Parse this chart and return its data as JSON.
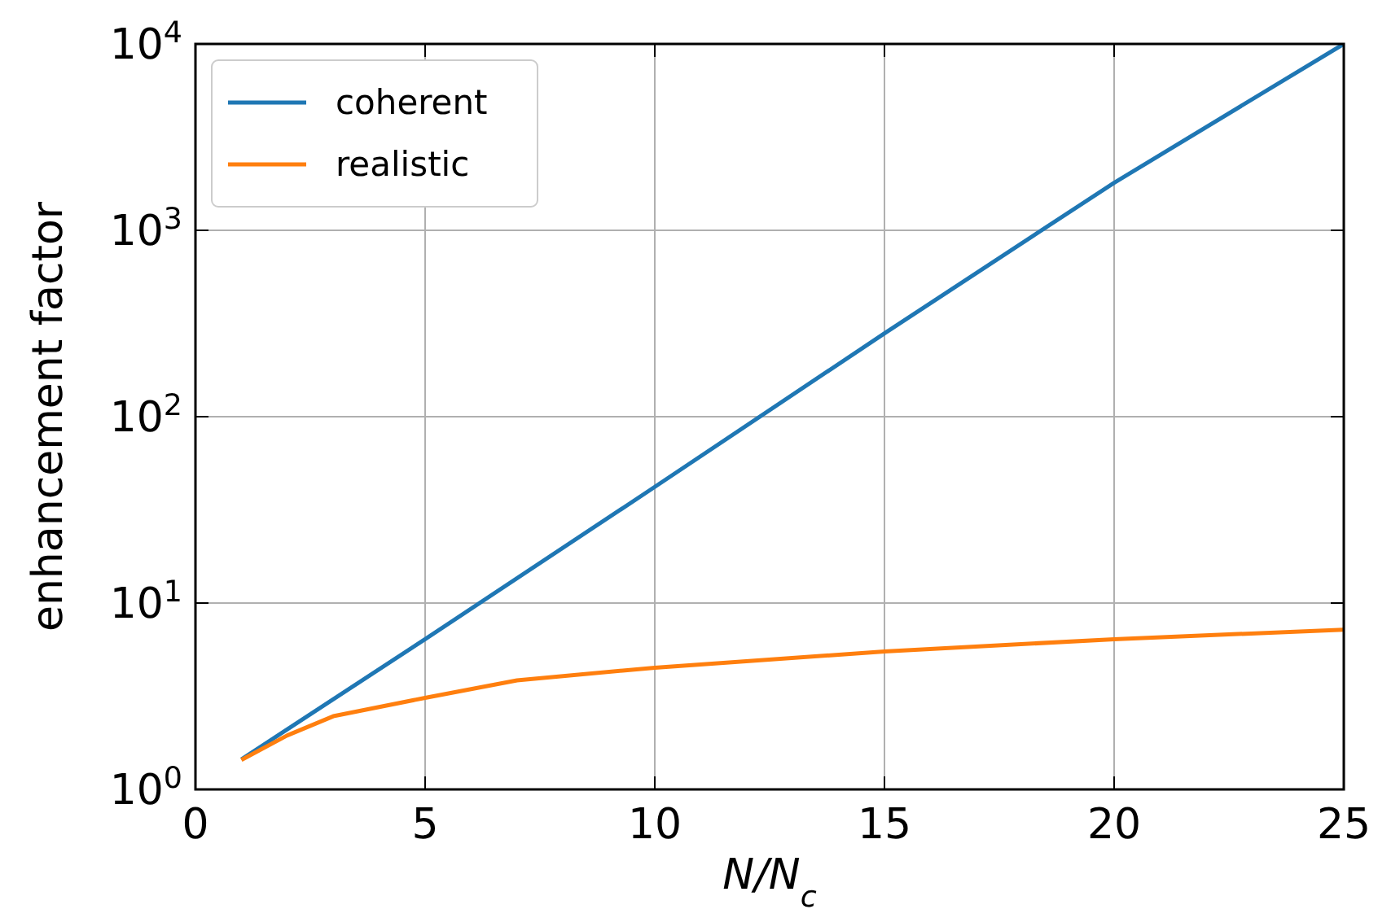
{
  "chart_data": {
    "type": "line",
    "xlabel": "N/N$_{c}$",
    "ylabel": "enhancement factor",
    "log": "y",
    "grid": true,
    "legend": "top left",
    "xlim": [
      0,
      25
    ],
    "xticks": [
      0,
      5,
      10,
      15,
      20,
      25
    ],
    "ylim": [
      1,
      10000
    ],
    "yticks": [
      {
        "value": 1,
        "label": "10$^{0}$"
      },
      {
        "value": 10,
        "label": "10$^{1}$"
      },
      {
        "value": 100,
        "label": "10$^{2}$"
      },
      {
        "value": 1000,
        "label": "10$^{3}$"
      },
      {
        "value": 10000,
        "label": "10$^{4}$"
      }
    ],
    "series": [
      {
        "name": "coherent",
        "color": "#1f77b4",
        "x": [
          1,
          2,
          5,
          10,
          15,
          20,
          25
        ],
        "values": [
          1.45,
          2.1,
          6.4,
          42,
          280,
          1800,
          10000
        ]
      },
      {
        "name": "realistic",
        "color": "#ff7f0e",
        "x": [
          1,
          2,
          3,
          5,
          7,
          10,
          15,
          20,
          25
        ],
        "values": [
          1.44,
          1.95,
          2.47,
          3.1,
          3.85,
          4.5,
          5.5,
          6.4,
          7.2
        ]
      }
    ]
  }
}
